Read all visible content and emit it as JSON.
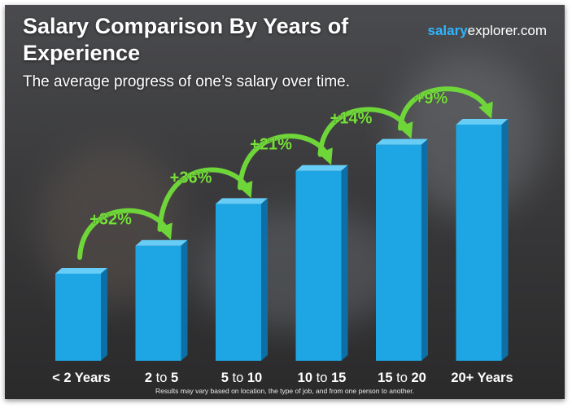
{
  "header": {
    "title": "Salary Comparison By Years of Experience",
    "subtitle": "The average progress of one’s salary over time.",
    "brand_bold": "salary",
    "brand_rest": "explorer.com"
  },
  "footnote": "Results may vary based on location, the type of job, and from one person to another.",
  "colors": {
    "bar_front": "#1ea6e4",
    "bar_side": "#0d6fa6",
    "bar_top": "#67cdf7",
    "increase": "#78e03c",
    "arrow": "#6fd63a"
  },
  "chart_data": {
    "type": "bar",
    "categories": [
      "< 2 Years",
      "2 to 5",
      "5 to 10",
      "10 to 15",
      "15 to 20",
      "20+ Years"
    ],
    "values": [
      1.0,
      1.32,
      1.8,
      2.18,
      2.48,
      2.71
    ],
    "increases": [
      "+32%",
      "+36%",
      "+21%",
      "+14%",
      "+9%"
    ],
    "ylim": [
      0,
      2.71
    ]
  }
}
